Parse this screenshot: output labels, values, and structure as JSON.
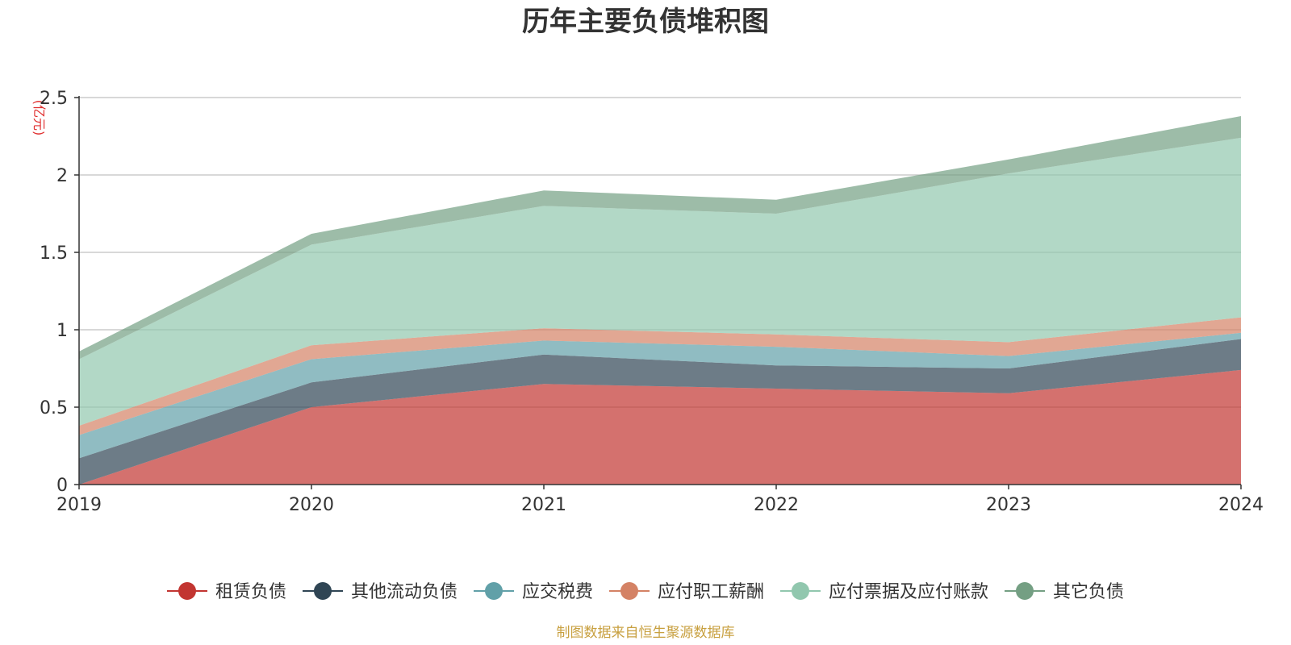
{
  "chart_data": {
    "type": "area",
    "stacked": true,
    "title": "历年主要负债堆积图",
    "unit_label": "(亿元)",
    "x": [
      "2019",
      "2020",
      "2021",
      "2022",
      "2023",
      "2024"
    ],
    "ylim": [
      0,
      2.5
    ],
    "yticks": [
      "0",
      "0.5",
      "1",
      "1.5",
      "2",
      "2.5"
    ],
    "grid": true,
    "legend_position": "bottom",
    "series": [
      {
        "name": "租赁负债",
        "color": "#c23531",
        "values": [
          0,
          0.5,
          0.65,
          0.62,
          0.59,
          0.74
        ]
      },
      {
        "name": "其他流动负债",
        "color": "#2f4554",
        "values": [
          0.17,
          0.16,
          0.19,
          0.15,
          0.16,
          0.2
        ]
      },
      {
        "name": "应交税费",
        "color": "#61a0a8",
        "values": [
          0.15,
          0.15,
          0.09,
          0.12,
          0.08,
          0.04
        ]
      },
      {
        "name": "应付职工薪酬",
        "color": "#d48265",
        "values": [
          0.06,
          0.09,
          0.08,
          0.08,
          0.09,
          0.1
        ]
      },
      {
        "name": "应付票据及应付账款",
        "color": "#91c7ae",
        "values": [
          0.43,
          0.65,
          0.79,
          0.78,
          1.09,
          1.16
        ]
      },
      {
        "name": "其它负债",
        "color": "#749f83",
        "values": [
          0.05,
          0.07,
          0.1,
          0.09,
          0.09,
          0.14
        ]
      }
    ],
    "source_note": "制图数据来自恒生聚源数据库"
  }
}
